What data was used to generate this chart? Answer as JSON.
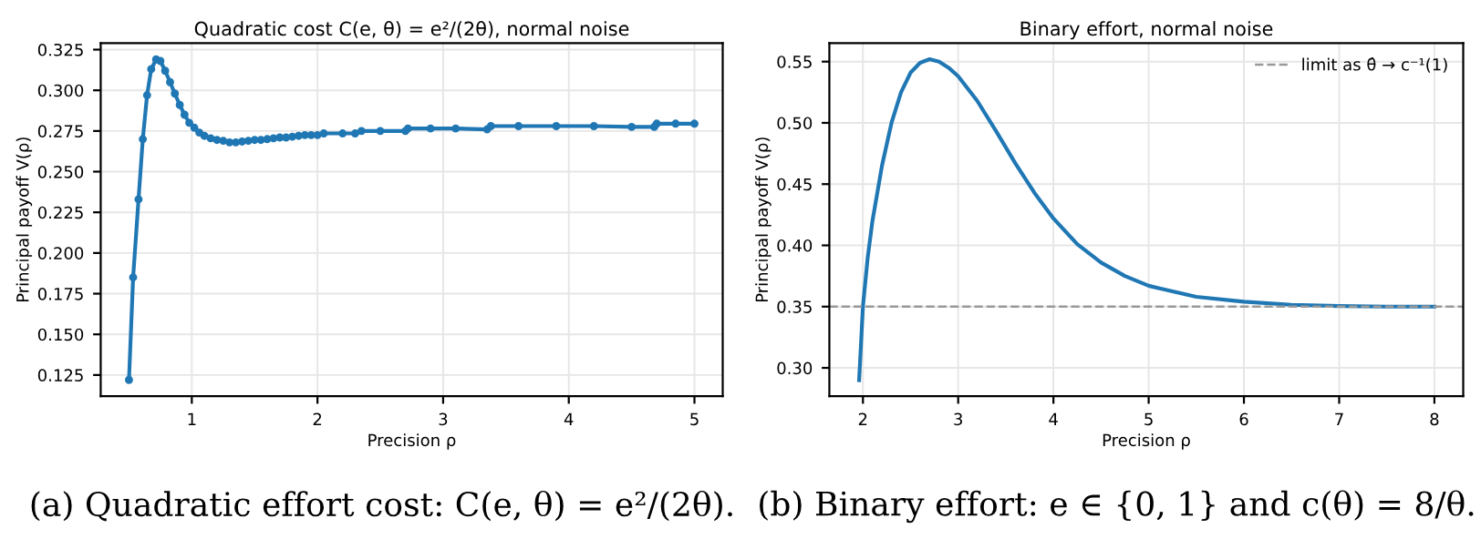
{
  "chart_data": [
    {
      "type": "line",
      "title": "Quadratic cost C(e, θ) = e²/(2θ), normal noise",
      "xlabel": "Precision ρ",
      "ylabel": "Principal payoff V(ρ)",
      "annotations": [
        "(a) Quadratic effort cost: C(e, θ) = e²/(2θ)."
      ],
      "x": [
        0.5,
        0.533,
        0.576,
        0.61,
        0.644,
        0.677,
        0.716,
        0.75,
        0.788,
        0.827,
        0.865,
        0.904,
        0.942,
        0.98,
        1.02,
        1.06,
        1.1,
        1.15,
        1.2,
        1.25,
        1.3,
        1.35,
        1.4,
        1.45,
        1.5,
        1.55,
        1.6,
        1.65,
        1.7,
        1.75,
        1.8,
        1.85,
        1.9,
        1.95,
        2.0,
        2.05,
        2.2,
        2.3,
        2.35,
        2.5,
        2.7,
        2.72,
        2.9,
        3.1,
        3.35,
        3.38,
        3.6,
        3.9,
        4.2,
        4.5,
        4.68,
        4.7,
        4.85,
        5.0
      ],
      "series": [
        {
          "color": "#1f77b4",
          "values": [
            0.122,
            0.185,
            0.233,
            0.27,
            0.297,
            0.313,
            0.319,
            0.318,
            0.312,
            0.305,
            0.298,
            0.291,
            0.285,
            0.28,
            0.277,
            0.274,
            0.272,
            0.2705,
            0.2695,
            0.269,
            0.268,
            0.268,
            0.2685,
            0.269,
            0.2695,
            0.2695,
            0.27,
            0.2705,
            0.271,
            0.271,
            0.2715,
            0.272,
            0.2725,
            0.2725,
            0.2725,
            0.2735,
            0.2735,
            0.2735,
            0.275,
            0.275,
            0.275,
            0.2765,
            0.2765,
            0.2765,
            0.276,
            0.278,
            0.278,
            0.278,
            0.278,
            0.2775,
            0.2775,
            0.2795,
            0.2795,
            0.2795
          ]
        }
      ],
      "xlim": [
        0.275,
        5.225
      ],
      "ylim": [
        0.112,
        0.329
      ],
      "xticks": [
        1,
        2,
        3,
        4,
        5
      ],
      "yticks": [
        {
          "value": 0.125,
          "label": "0.125"
        },
        {
          "value": 0.15,
          "label": "0.150"
        },
        {
          "value": 0.175,
          "label": "0.175"
        },
        {
          "value": 0.2,
          "label": "0.200"
        },
        {
          "value": 0.225,
          "label": "0.225"
        },
        {
          "value": 0.25,
          "label": "0.250"
        },
        {
          "value": 0.275,
          "label": "0.275"
        },
        {
          "value": 0.3,
          "label": "0.300"
        },
        {
          "value": 0.325,
          "label": "0.325"
        }
      ],
      "grid": true,
      "marker": "circle",
      "line_style": "solid"
    },
    {
      "type": "line",
      "title": "Binary effort, normal noise",
      "xlabel": "Precision ρ",
      "ylabel": "Principal payoff V(ρ)",
      "annotations": [
        "(b) Binary effort: e ∈ {0, 1} and c(θ) = 8/θ."
      ],
      "x": [
        1.96,
        1.98,
        2.0,
        2.05,
        2.1,
        2.2,
        2.3,
        2.4,
        2.5,
        2.6,
        2.7,
        2.8,
        2.9,
        3.0,
        3.2,
        3.4,
        3.6,
        3.8,
        4.0,
        4.25,
        4.5,
        4.75,
        5.0,
        5.5,
        6.0,
        6.5,
        7.0,
        7.5,
        8.0
      ],
      "series": [
        {
          "color": "#1f77b4",
          "values": [
            0.29,
            0.32,
            0.35,
            0.39,
            0.42,
            0.465,
            0.5,
            0.525,
            0.541,
            0.549,
            0.552,
            0.55,
            0.545,
            0.538,
            0.518,
            0.493,
            0.467,
            0.443,
            0.422,
            0.401,
            0.386,
            0.375,
            0.367,
            0.358,
            0.354,
            0.3515,
            0.3505,
            0.35,
            0.35
          ]
        }
      ],
      "ref_lines": [
        {
          "axis": "y",
          "value": 0.35,
          "label": "limit as θ̂ → c⁻¹(1)",
          "color": "#999999",
          "line_style": "dashed"
        }
      ],
      "xlim": [
        1.6475,
        8.3025
      ],
      "ylim": [
        0.2769,
        0.5651
      ],
      "xticks": [
        2,
        3,
        4,
        5,
        6,
        7,
        8
      ],
      "yticks": [
        {
          "value": 0.3,
          "label": "0.30"
        },
        {
          "value": 0.35,
          "label": "0.35"
        },
        {
          "value": 0.4,
          "label": "0.40"
        },
        {
          "value": 0.45,
          "label": "0.45"
        },
        {
          "value": 0.5,
          "label": "0.50"
        },
        {
          "value": 0.55,
          "label": "0.55"
        }
      ],
      "grid": true,
      "legend": "top right",
      "marker": "none",
      "line_style": "solid"
    }
  ]
}
